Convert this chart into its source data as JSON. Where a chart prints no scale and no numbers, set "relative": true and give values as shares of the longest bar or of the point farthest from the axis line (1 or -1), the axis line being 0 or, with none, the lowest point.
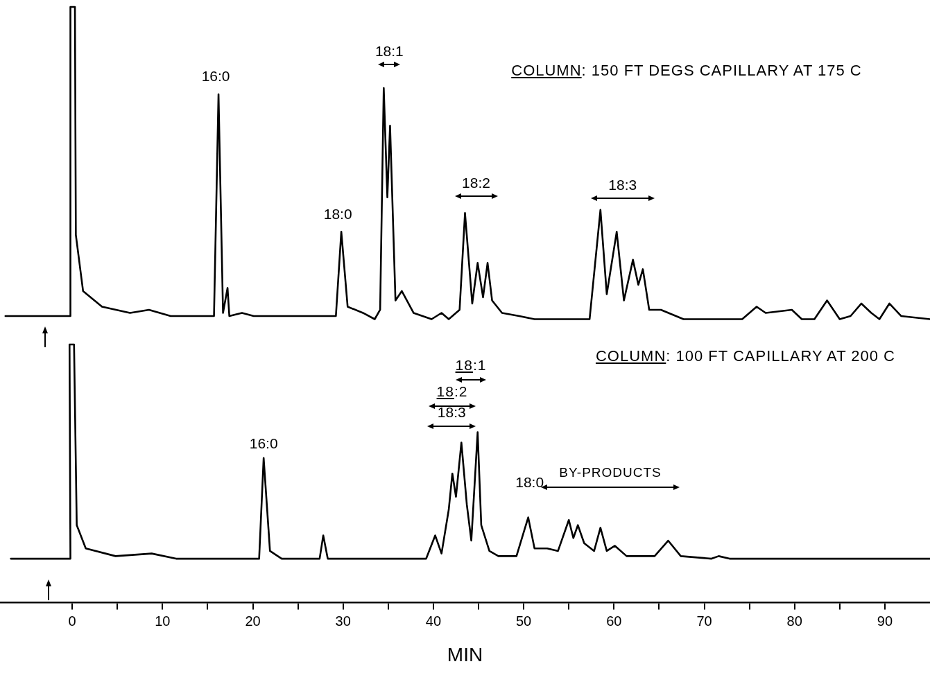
{
  "chart_data": [
    {
      "type": "line",
      "relative": true,
      "xlim": [
        -8,
        95
      ],
      "tick_labels": false,
      "marker": "none",
      "line_style": "solid",
      "x": [
        -7.4,
        -0.2,
        -0.2,
        0.3,
        0.4,
        1.2,
        3.3,
        6.4,
        8.5,
        10.9,
        15.7,
        16.2,
        16.7,
        17.2,
        17.4,
        18.8,
        20.1,
        29.2,
        29.8,
        30.5,
        32.2,
        33.5,
        34.1,
        34.5,
        34.9,
        35.2,
        35.8,
        36.5,
        37.8,
        39.8,
        40.9,
        41.7,
        42.9,
        43.5,
        44.3,
        44.9,
        45.5,
        46.0,
        46.5,
        47.6,
        49.5,
        51.2,
        57.3,
        58.5,
        59.2,
        60.3,
        61.1,
        62.1,
        62.7,
        63.2,
        63.9,
        65.2,
        67.7,
        74.2,
        75.8,
        76.8,
        79.7,
        80.8,
        82.2,
        83.6,
        85.0,
        86.2,
        87.4,
        88.5,
        89.4,
        90.5,
        91.8,
        95.0
      ],
      "series": [
        {
          "color": "#000000",
          "values": [
            0.01,
            0.01,
            1,
            1,
            0.27,
            0.09,
            0.04,
            0.02,
            0.03,
            0.01,
            0.01,
            0.72,
            0.02,
            0.1,
            0.01,
            0.02,
            0.01,
            0.01,
            0.28,
            0.04,
            0.02,
            0.0,
            0.03,
            0.74,
            0.39,
            0.62,
            0.06,
            0.09,
            0.02,
            0.0,
            0.02,
            0.0,
            0.03,
            0.34,
            0.05,
            0.18,
            0.07,
            0.18,
            0.06,
            0.02,
            0.01,
            0,
            0,
            0.35,
            0.08,
            0.28,
            0.06,
            0.19,
            0.11,
            0.16,
            0.03,
            0.03,
            0,
            0,
            0.04,
            0.02,
            0.03,
            0,
            0,
            0.06,
            0,
            0.01,
            0.05,
            0.02,
            0,
            0.05,
            0.01,
            0
          ]
        }
      ],
      "annotations": [
        {
          "text": "16:0",
          "x": 16.2,
          "y": 0.72
        },
        {
          "text": "18:0",
          "x": 29.8,
          "y": 0.28
        },
        {
          "text": "18:1",
          "x": 34.5,
          "y": 0.74
        },
        {
          "text": "18:2",
          "x": 43.5,
          "y": 0.34
        },
        {
          "text": "18:3",
          "x": 58.5,
          "y": 0.35
        },
        "COLUMN: 150 FT DEGS CAPILLARY AT 175 C"
      ]
    },
    {
      "type": "line",
      "relative": true,
      "xlim": [
        -8,
        95
      ],
      "xlabel": "MIN",
      "marker": "none",
      "line_style": "solid",
      "xticks": [
        0,
        {
          "value": 5,
          "label": null
        },
        10,
        {
          "value": 15,
          "label": null
        },
        20,
        {
          "value": 25,
          "label": null
        },
        30,
        {
          "value": 35,
          "label": null
        },
        40,
        {
          "value": 45,
          "label": null
        },
        50,
        {
          "value": 55,
          "label": null
        },
        60,
        {
          "value": 65,
          "label": null
        },
        70,
        {
          "value": 75,
          "label": null
        },
        80,
        {
          "value": 85,
          "label": null
        },
        90
      ],
      "x": [
        -6.8,
        -0.2,
        -0.3,
        0.2,
        0.5,
        1.5,
        4.8,
        8.8,
        11.5,
        20.7,
        21.2,
        21.9,
        23.2,
        27.4,
        27.8,
        28.3,
        39.2,
        40.2,
        40.9,
        41.7,
        42.1,
        42.5,
        43.1,
        43.7,
        44.2,
        44.9,
        45.3,
        46.2,
        47.2,
        49.2,
        50.5,
        51.2,
        52.6,
        53.8,
        55.0,
        55.5,
        56.0,
        56.7,
        57.8,
        58.5,
        59.2,
        60.1,
        61.4,
        62.8,
        64.5,
        66.0,
        67.4,
        70.8,
        71.6,
        72.8,
        95.0
      ],
      "series": [
        {
          "color": "#000000",
          "values": [
            0.17,
            0.17,
            1,
            1,
            0.3,
            0.21,
            0.18,
            0.19,
            0.17,
            0.17,
            0.56,
            0.2,
            0.17,
            0.17,
            0.26,
            0.17,
            0.17,
            0.26,
            0.19,
            0.36,
            0.5,
            0.41,
            0.62,
            0.38,
            0.24,
            0.66,
            0.3,
            0.2,
            0.18,
            0.18,
            0.33,
            0.21,
            0.21,
            0.2,
            0.32,
            0.25,
            0.3,
            0.23,
            0.2,
            0.29,
            0.2,
            0.22,
            0.18,
            0.18,
            0.18,
            0.24,
            0.18,
            0.17,
            0.18,
            0.17,
            0.17
          ]
        }
      ],
      "annotations": [
        {
          "text": "16:0",
          "x": 21.2,
          "y": 0.56
        },
        {
          "text": "18:3",
          "x": 43.1,
          "y": 0.62
        },
        {
          "text": "18:0",
          "x": 50.5,
          "y": 0.33
        },
        "18:1",
        "18:2",
        "BY-PRODUCTS",
        "COLUMN: 100 FT CAPILLARY AT 200 C"
      ]
    }
  ]
}
